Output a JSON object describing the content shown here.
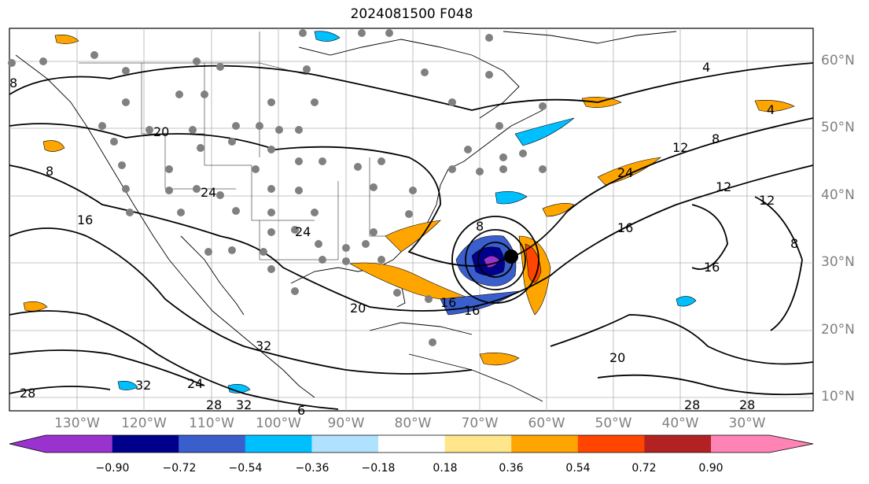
{
  "title": "2024081500 F048",
  "lat_labels": [
    "60°N",
    "50°N",
    "40°N",
    "30°N",
    "20°N",
    "10°N"
  ],
  "lon_labels": [
    "130°W",
    "120°W",
    "110°W",
    "100°W",
    "90°W",
    "80°W",
    "70°W",
    "60°W",
    "50°W",
    "40°W",
    "30°W"
  ],
  "contour_labels": [
    "4",
    "4",
    "8",
    "8",
    "8",
    "8",
    "8",
    "12",
    "12",
    "12",
    "16",
    "16",
    "16",
    "16",
    "16",
    "20",
    "20",
    "20",
    "24",
    "24",
    "24",
    "24",
    "28",
    "28",
    "28",
    "28",
    "32",
    "32",
    "32",
    "6"
  ],
  "colorbar": {
    "ticks": [
      "−0.90",
      "−0.72",
      "−0.54",
      "−0.36",
      "−0.18",
      "0.18",
      "0.36",
      "0.54",
      "0.72",
      "0.90"
    ],
    "colors": [
      "#9a32cd",
      "#00008b",
      "#3a5fcd",
      "#00bfff",
      "#b0e2ff",
      "#ffffff",
      "#ffe68c",
      "#ffa500",
      "#ff4500",
      "#b22222",
      "#ff83b5"
    ]
  },
  "map_colors": {
    "land_border": "#000000",
    "gridline": "#b0b0b0",
    "station_dot": "#808080",
    "storm_center": "#000000"
  }
}
